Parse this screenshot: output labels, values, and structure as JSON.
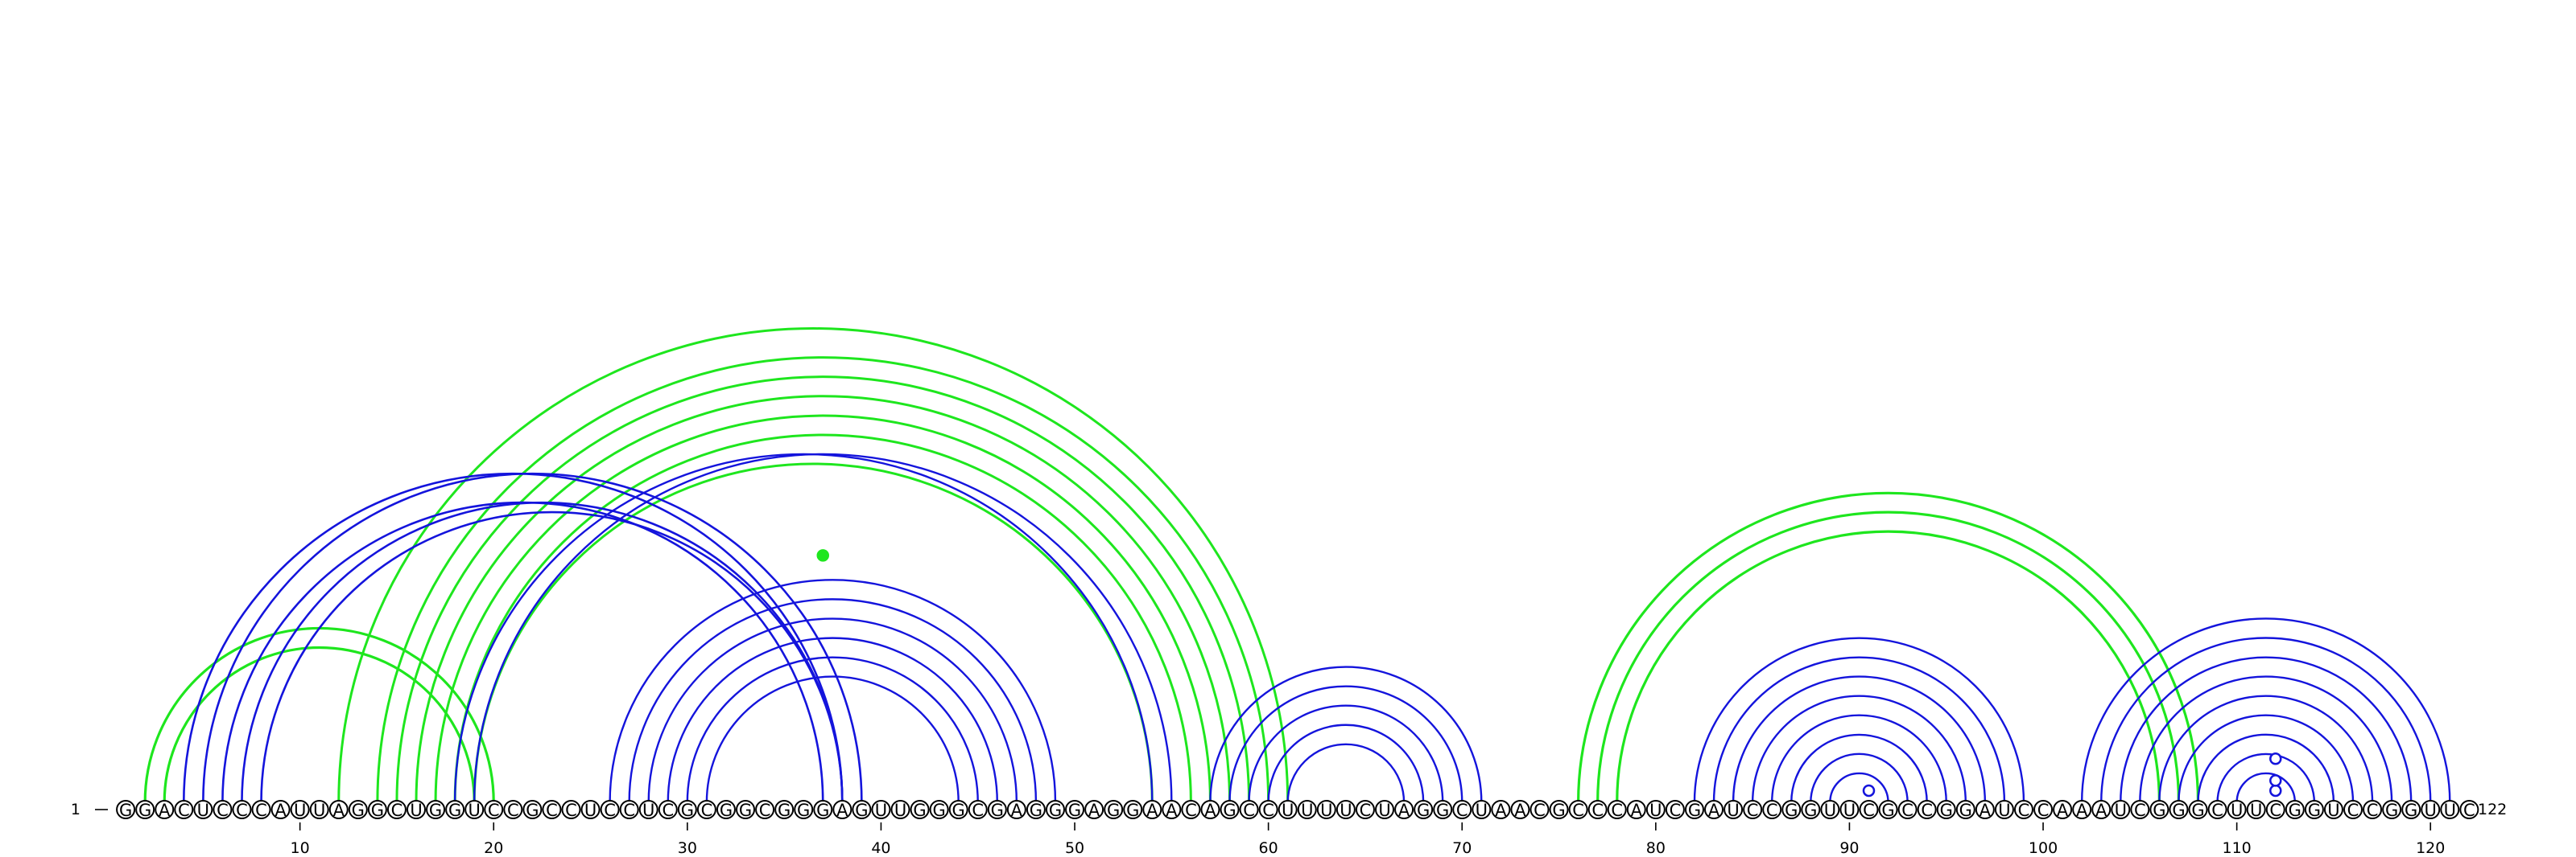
{
  "sequence": "GGACUCCCAUUAGGCUGGUCCGCCUCCUCGCGGCGGGAGUUGGGCGAGGGAGGAACAGCCUUUUCUAGGCUAACGCCCAUCGAUCCGGUUCGCCGGAUCCAAAUCGGGCUUCGGUCCGGUUC",
  "start_label": "1",
  "end_label": "122",
  "ticks": [
    10,
    20,
    30,
    40,
    50,
    60,
    70,
    80,
    90,
    100,
    110,
    120
  ],
  "colors": {
    "blue": "#1414dc",
    "green": "#1ee61e"
  },
  "helices": [
    {
      "color": "green",
      "width": 3.2,
      "pairs": [
        [
          2,
          20
        ],
        [
          3,
          19
        ]
      ]
    },
    {
      "color": "green",
      "width": 3.0,
      "pairs": [
        [
          12,
          61
        ],
        [
          14,
          60
        ],
        [
          15,
          59
        ],
        [
          16,
          58
        ],
        [
          17,
          57
        ],
        [
          18,
          56
        ],
        [
          19,
          54
        ]
      ]
    },
    {
      "color": "blue",
      "width": 2.6,
      "pairs": [
        [
          4,
          38
        ],
        [
          5,
          39
        ],
        [
          6,
          37
        ],
        [
          7,
          38
        ],
        [
          8,
          38
        ]
      ]
    },
    {
      "color": "blue",
      "width": 2.4,
      "pairs": [
        [
          18,
          54
        ],
        [
          19,
          55
        ]
      ]
    },
    {
      "color": "blue",
      "width": 2.4,
      "pairs": [
        [
          26,
          49
        ],
        [
          27,
          48
        ],
        [
          28,
          47
        ],
        [
          29,
          46
        ],
        [
          30,
          45
        ],
        [
          31,
          44
        ]
      ]
    },
    {
      "color": "blue",
      "width": 2.4,
      "pairs": [
        [
          57,
          71
        ],
        [
          58,
          70
        ],
        [
          59,
          69
        ],
        [
          60,
          68
        ],
        [
          61,
          67
        ]
      ]
    },
    {
      "color": "green",
      "width": 3.2,
      "pairs": [
        [
          76,
          108
        ],
        [
          77,
          107
        ],
        [
          78,
          106
        ]
      ]
    },
    {
      "color": "blue",
      "width": 2.4,
      "pairs": [
        [
          82,
          99
        ],
        [
          83,
          98
        ],
        [
          84,
          97
        ],
        [
          85,
          96
        ],
        [
          86,
          95
        ],
        [
          87,
          94
        ],
        [
          88,
          93
        ],
        [
          89,
          92
        ]
      ]
    },
    {
      "color": "blue",
      "width": 2.4,
      "pairs": [
        [
          102,
          121
        ],
        [
          103,
          120
        ],
        [
          104,
          119
        ],
        [
          105,
          118
        ],
        [
          106,
          117
        ],
        [
          107,
          116
        ],
        [
          108,
          115
        ],
        [
          109,
          114
        ],
        [
          110,
          113
        ]
      ]
    }
  ],
  "markers": [
    {
      "n": 37,
      "h": 7.3,
      "color": "green",
      "filled": true
    },
    {
      "n": 91,
      "h": 0.3,
      "color": "blue",
      "filled": false
    },
    {
      "n": 112,
      "h": 0.3,
      "color": "blue",
      "filled": false
    },
    {
      "n": 112,
      "h": 0.6,
      "color": "blue",
      "filled": false
    },
    {
      "n": 112,
      "h": 1.25,
      "color": "blue",
      "filled": false
    }
  ]
}
